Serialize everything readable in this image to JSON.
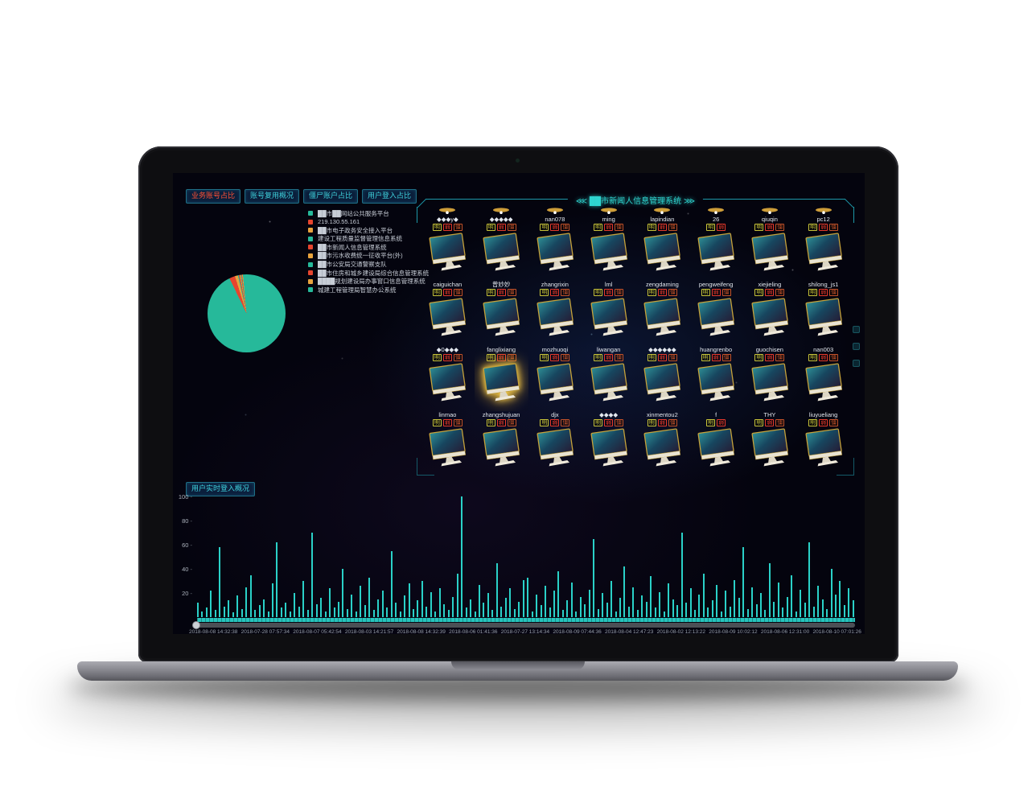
{
  "tabs": [
    {
      "label": "业务账号占比",
      "active": true
    },
    {
      "label": "账号复用概况",
      "active": false
    },
    {
      "label": "僵尸账户占比",
      "active": false
    },
    {
      "label": "用户登入占比",
      "active": false
    }
  ],
  "chart_data": [
    {
      "type": "pie",
      "title": "业务账号占比",
      "labels": [
        "██市██网站公共服务平台",
        "219.130.55.161",
        "██市电子政务安全接入平台",
        "建设工程质量监督管理信息系统",
        "██市新闻人信息管理系统",
        "██市污水收费统一征收平台(外)",
        "██市公安局交通警察支队",
        "██市住房和城乡建设局综合信息管理系统",
        "████规划建设局办事窗口信息管理系统",
        "城建工程管理局智慧办公系统"
      ],
      "values": [
        92.8,
        2.4,
        1.2,
        0.4,
        0.5,
        0.3,
        0.3,
        0.3,
        0.3,
        1.5
      ],
      "colors": [
        "#26b99a",
        "#e6452e",
        "#e8a33d",
        "#26b99a",
        "#e6452e",
        "#e8a33d",
        "#26b99a",
        "#e6452e",
        "#e8a33d",
        "#26b99a"
      ],
      "legend_position": "right"
    },
    {
      "type": "bar",
      "title": "用户实时登入概况",
      "ylim": [
        0,
        100
      ],
      "yticks": [
        100,
        80,
        60,
        40,
        20
      ],
      "x_tick_labels": [
        "2018-08-08 14:32:38",
        "2018-07-28 07:57:34",
        "2018-08-07 05:42:54",
        "2018-08-03 14:21:57",
        "2018-08-08 14:32:39",
        "2018-08-06 01:41:36",
        "2018-07-27 13:14:34",
        "2018-08-09 07:44:36",
        "2018-08-04 12:47:23",
        "2018-08-02 12:13:22",
        "2018-08-09 10:02:12",
        "2018-08-06 12:31:00",
        "2018-08-10 07:01:26"
      ],
      "values": [
        12,
        5,
        8,
        22,
        6,
        58,
        9,
        14,
        4,
        18,
        7,
        25,
        35,
        6,
        10,
        15,
        5,
        28,
        62,
        8,
        12,
        5,
        20,
        9,
        30,
        6,
        70,
        11,
        16,
        5,
        24,
        8,
        13,
        40,
        7,
        19,
        5,
        26,
        10,
        33,
        6,
        15,
        22,
        8,
        55,
        12,
        5,
        18,
        28,
        7,
        14,
        30,
        9,
        21,
        5,
        24,
        11,
        6,
        17,
        36,
        100,
        8,
        15,
        5,
        27,
        12,
        20,
        6,
        45,
        9,
        16,
        24,
        7,
        13,
        31,
        33,
        5,
        19,
        10,
        26,
        8,
        22,
        38,
        6,
        14,
        29,
        5,
        17,
        11,
        23,
        65,
        7,
        20,
        12,
        30,
        5,
        16,
        42,
        9,
        25,
        6,
        18,
        13,
        34,
        8,
        21,
        5,
        28,
        15,
        10,
        70,
        12,
        24,
        6,
        19,
        36,
        8,
        14,
        27,
        5,
        22,
        9,
        31,
        16,
        58,
        7,
        25,
        11,
        20,
        6,
        45,
        13,
        29,
        8,
        17,
        35,
        5,
        23,
        12,
        62,
        9,
        26,
        15,
        7,
        40,
        19,
        30,
        10,
        24,
        14
      ]
    }
  ],
  "monitor_panel": {
    "decor_left": "⋘",
    "decor_right": "⋙",
    "title": "██市新闻人信息管理系统",
    "badge_colors": {
      "明": "#c9c53a",
      "弱": "#e6392c",
      "僵": "#c4532a"
    },
    "users": [
      {
        "name": "◆◆◆y◆",
        "badges": [
          "明",
          "弱",
          "僵"
        ]
      },
      {
        "name": "◆◆◆◆◆",
        "badges": [
          "明",
          "弱",
          "僵"
        ]
      },
      {
        "name": "nan078",
        "badges": [
          "明",
          "弱",
          "僵"
        ]
      },
      {
        "name": "ming",
        "badges": [
          "明",
          "弱",
          "僵"
        ]
      },
      {
        "name": "lapindian",
        "badges": [
          "明",
          "弱",
          "僵"
        ]
      },
      {
        "name": "26",
        "badges": [
          "明",
          "弱"
        ]
      },
      {
        "name": "qiuqin",
        "badges": [
          "明",
          "弱",
          "僵"
        ]
      },
      {
        "name": "pc12",
        "badges": [
          "明",
          "弱",
          "僵"
        ]
      },
      {
        "name": "caiguichan",
        "badges": [
          "明",
          "弱",
          "僵"
        ]
      },
      {
        "name": "曾妙妙",
        "badges": [
          "明",
          "弱",
          "僵"
        ]
      },
      {
        "name": "zhangrixin",
        "badges": [
          "明",
          "弱",
          "僵"
        ]
      },
      {
        "name": "lml",
        "badges": [
          "明",
          "弱",
          "僵"
        ]
      },
      {
        "name": "zengdaming",
        "badges": [
          "明",
          "弱",
          "僵"
        ]
      },
      {
        "name": "pengweifeng",
        "badges": [
          "明",
          "弱",
          "僵"
        ]
      },
      {
        "name": "xiejieling",
        "badges": [
          "明",
          "弱",
          "僵"
        ]
      },
      {
        "name": "shilong_js1",
        "badges": [
          "明",
          "弱",
          "僵"
        ]
      },
      {
        "name": "◆0◆◆◆",
        "badges": [
          "明",
          "弱",
          "僵"
        ]
      },
      {
        "name": "fanglixiang",
        "badges": [
          "明",
          "弱",
          "僵"
        ],
        "highlighted": true
      },
      {
        "name": "mozhuoqi",
        "badges": [
          "明",
          "弱",
          "僵"
        ]
      },
      {
        "name": "liwangan",
        "badges": [
          "明",
          "弱",
          "僵"
        ]
      },
      {
        "name": "◆◆◆◆◆◆",
        "badges": [
          "明",
          "弱",
          "僵"
        ]
      },
      {
        "name": "huangrenbo",
        "badges": [
          "明",
          "弱",
          "僵"
        ]
      },
      {
        "name": "guochisen",
        "badges": [
          "明",
          "弱",
          "僵"
        ]
      },
      {
        "name": "nan003",
        "badges": [
          "明",
          "弱",
          "僵"
        ]
      },
      {
        "name": "linmao",
        "badges": [
          "明",
          "弱",
          "僵"
        ]
      },
      {
        "name": "zhangshujuan",
        "badges": [
          "明",
          "弱",
          "僵"
        ]
      },
      {
        "name": "djx",
        "badges": [
          "明",
          "弱",
          "僵"
        ]
      },
      {
        "name": "◆◆◆◆",
        "badges": [
          "明",
          "弱",
          "僵"
        ]
      },
      {
        "name": "xinmentou2",
        "badges": [
          "明",
          "弱",
          "僵"
        ]
      },
      {
        "name": "f",
        "badges": [
          "明",
          "弱"
        ]
      },
      {
        "name": "THY",
        "badges": [
          "明",
          "弱",
          "僵"
        ]
      },
      {
        "name": "liuyueliang",
        "badges": [
          "明",
          "弱",
          "僵"
        ]
      }
    ]
  }
}
